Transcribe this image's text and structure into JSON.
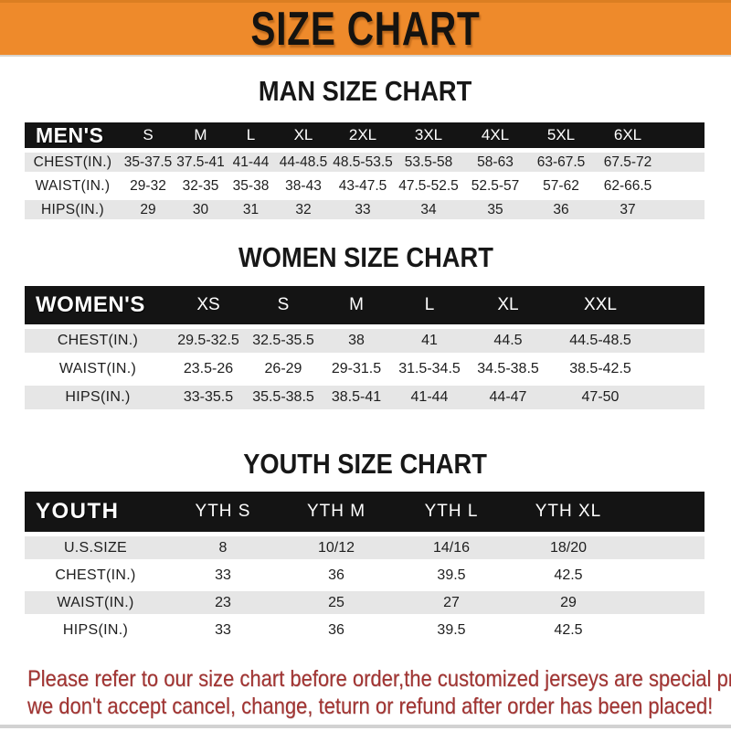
{
  "banner": {
    "title": "SIZE CHART",
    "bg_color": "#EE8A2B",
    "text_color": "#151310"
  },
  "sections": [
    {
      "id": "men",
      "title": "MAN SIZE CHART",
      "header_label": "MEN'S",
      "columns": [
        "S",
        "M",
        "L",
        "XL",
        "2XL",
        "3XL",
        "4XL",
        "5XL",
        "6XL"
      ],
      "rows": [
        {
          "label": "CHEST(IN.)",
          "values": [
            "35-37.5",
            "37.5-41",
            "41-44",
            "44-48.5",
            "48.5-53.5",
            "53.5-58",
            "58-63",
            "63-67.5",
            "67.5-72"
          ]
        },
        {
          "label": "WAIST(IN.)",
          "values": [
            "29-32",
            "32-35",
            "35-38",
            "38-43",
            "43-47.5",
            "47.5-52.5",
            "52.5-57",
            "57-62",
            "62-66.5"
          ]
        },
        {
          "label": "HIPS(IN.)",
          "values": [
            "29",
            "30",
            "31",
            "32",
            "33",
            "34",
            "35",
            "36",
            "37"
          ]
        }
      ]
    },
    {
      "id": "women",
      "title": "WOMEN SIZE CHART",
      "header_label": "WOMEN'S",
      "columns": [
        "XS",
        "S",
        "M",
        "L",
        "XL",
        "XXL"
      ],
      "rows": [
        {
          "label": "CHEST(IN.)",
          "values": [
            "29.5-32.5",
            "32.5-35.5",
            "38",
            "41",
            "44.5",
            "44.5-48.5"
          ]
        },
        {
          "label": "WAIST(IN.)",
          "values": [
            "23.5-26",
            "26-29",
            "29-31.5",
            "31.5-34.5",
            "34.5-38.5",
            "38.5-42.5"
          ]
        },
        {
          "label": "HIPS(IN.)",
          "values": [
            "33-35.5",
            "35.5-38.5",
            "38.5-41",
            "41-44",
            "44-47",
            "47-50"
          ]
        }
      ]
    },
    {
      "id": "youth",
      "title": "YOUTH SIZE CHART",
      "header_label": "YOUTH",
      "columns": [
        "YTH S",
        "YTH M",
        "YTH L",
        "YTH XL"
      ],
      "rows": [
        {
          "label": "U.S.SIZE",
          "values": [
            "8",
            "10/12",
            "14/16",
            "18/20"
          ]
        },
        {
          "label": "CHEST(IN.)",
          "values": [
            "33",
            "36",
            "39.5",
            "42.5"
          ]
        },
        {
          "label": "WAIST(IN.)",
          "values": [
            "23",
            "25",
            "27",
            "29"
          ]
        },
        {
          "label": "HIPS(IN.)",
          "values": [
            "33",
            "36",
            "39.5",
            "42.5"
          ]
        }
      ]
    }
  ],
  "footer": {
    "lines": [
      "Please refer to our size chart before order,the customized jerseys are special products,",
      "we don't accept cancel, change, teturn or refund after order has been placed!"
    ],
    "text_color": "#A23432"
  },
  "colors": {
    "header_bar": "#141414",
    "row_shaded": "#E6E6E6",
    "row_plain": "#FFFFFF"
  }
}
